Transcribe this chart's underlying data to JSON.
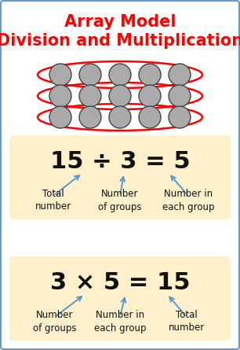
{
  "title_line1": "Array Model",
  "title_line2": "Division and Multiplication",
  "title_color": "#FF0000",
  "title_fontsize": 15,
  "bg_color": "#FFFFFF",
  "border_color": "#6699CC",
  "box_color": "#FFF0CC",
  "equation1": "15 ÷ 3 = 5",
  "equation2": "3 × 5 = 15",
  "eq_fontsize": 22,
  "label1": [
    "Total\nnumber",
    "Number\nof groups",
    "Number in\neach group"
  ],
  "label2": [
    "Number\nof groups",
    "Number in\neach group",
    "Total\nnumber"
  ],
  "label_fontsize": 8.5,
  "arrow_color": "#5599CC",
  "circle_color": "#AAAAAA",
  "circle_edge": "#444444",
  "ellipse_color": "#FF0000",
  "rows": 3,
  "cols": 5,
  "fig_width": 3.06,
  "fig_height": 4.45,
  "dpi": 100
}
